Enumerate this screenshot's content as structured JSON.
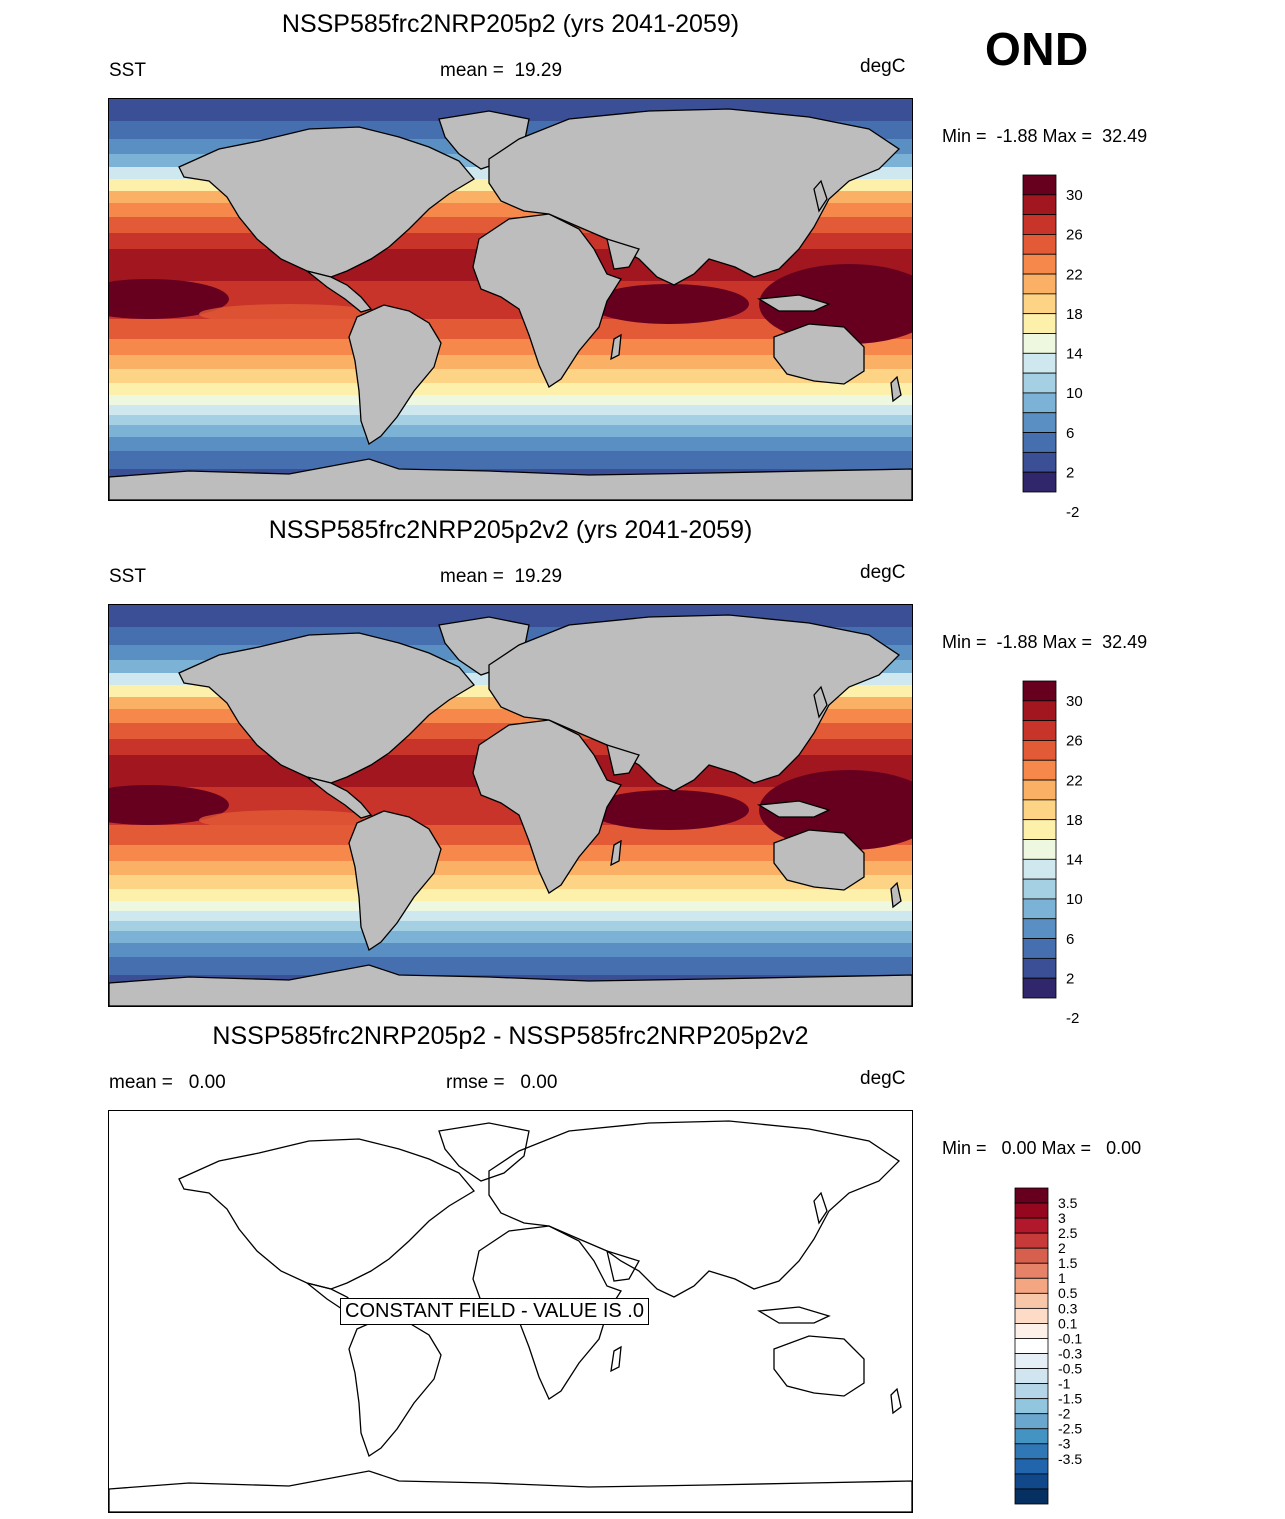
{
  "season": "OND",
  "panels": [
    {
      "title": "NSSP585frc2NRP205p2 (yrs 2041-2059)",
      "left": "SST",
      "center": "mean =  19.29",
      "right": "degC",
      "minmax": "Min =  -1.88 Max =  32.49"
    },
    {
      "title": "NSSP585frc2NRP205p2v2 (yrs 2041-2059)",
      "left": "SST",
      "center": "mean =  19.29",
      "right": "degC",
      "minmax": "Min =  -1.88 Max =  32.49"
    },
    {
      "title": "NSSP585frc2NRP205p2 - NSSP585frc2NRP205p2v2",
      "left": "mean =   0.00",
      "center": "rmse =   0.00",
      "right": "degC",
      "minmax": "Min =   0.00 Max =   0.00",
      "note": "CONSTANT FIELD - VALUE IS .0"
    }
  ],
  "colorbar_sst": {
    "labels": [
      "30",
      "26",
      "22",
      "18",
      "14",
      "10",
      "6",
      "2",
      "-2"
    ],
    "colors": [
      "#67001f",
      "#a2171f",
      "#c8332a",
      "#e35a37",
      "#f6884c",
      "#fbb165",
      "#fdd385",
      "#fdf0aa",
      "#eef7e0",
      "#cfe8ef",
      "#a5d0e3",
      "#7bb2d6",
      "#5a8fc3",
      "#466fb0",
      "#3a4f96",
      "#30266b"
    ]
  },
  "colorbar_diff": {
    "labels": [
      "3.5",
      "3",
      "2.5",
      "2",
      "1.5",
      "1",
      "0.5",
      "0.3",
      "0.1",
      "-0.1",
      "-0.3",
      "-0.5",
      "-1",
      "-1.5",
      "-2",
      "-2.5",
      "-3",
      "-3.5"
    ],
    "colors": [
      "#67001f",
      "#95061f",
      "#b2182b",
      "#c63b3a",
      "#d6604d",
      "#e58267",
      "#f4a582",
      "#f8c6a8",
      "#fddbc7",
      "#fdf0e8",
      "#ffffff",
      "#e6eff6",
      "#d1e5f0",
      "#b4d5e8",
      "#92c5de",
      "#6aa6cd",
      "#4393c3",
      "#2f78b5",
      "#2166ac",
      "#10488a",
      "#053061"
    ]
  }
}
